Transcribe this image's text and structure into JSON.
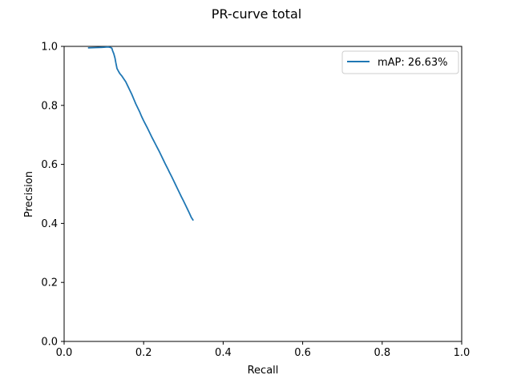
{
  "chart_data": {
    "type": "line",
    "title": "PR-curve total",
    "xlabel": "Recall",
    "ylabel": "Precision",
    "xlim": [
      0,
      1
    ],
    "ylim": [
      0,
      1
    ],
    "xticks": [
      0,
      0.2,
      0.4,
      0.6,
      0.8,
      1
    ],
    "xtick_labels": [
      "0.0",
      "0.2",
      "0.4",
      "0.6",
      "0.8",
      "1.0"
    ],
    "yticks": [
      0,
      0.2,
      0.4,
      0.6,
      0.8,
      1
    ],
    "ytick_labels": [
      "0.0",
      "0.2",
      "0.4",
      "0.6",
      "0.8",
      "1.0"
    ],
    "grid": false,
    "legend_position": "top-right",
    "series": [
      {
        "name": "mAP: 26.63%",
        "color": "#1f77b4",
        "x": [
          0.06,
          0.08,
          0.1,
          0.11,
          0.115,
          0.12,
          0.122,
          0.125,
          0.128,
          0.13,
          0.133,
          0.137,
          0.14,
          0.145,
          0.15,
          0.155,
          0.16,
          0.165,
          0.17,
          0.175,
          0.18,
          0.185,
          0.19,
          0.195,
          0.2,
          0.205,
          0.21,
          0.215,
          0.22,
          0.225,
          0.23,
          0.235,
          0.24,
          0.245,
          0.25,
          0.255,
          0.26,
          0.265,
          0.27,
          0.275,
          0.28,
          0.285,
          0.29,
          0.295,
          0.3,
          0.305,
          0.31,
          0.315,
          0.32,
          0.325
        ],
        "y": [
          0.995,
          0.996,
          0.997,
          0.998,
          0.997,
          0.994,
          0.985,
          0.975,
          0.96,
          0.945,
          0.925,
          0.915,
          0.908,
          0.9,
          0.89,
          0.88,
          0.866,
          0.852,
          0.838,
          0.822,
          0.806,
          0.792,
          0.778,
          0.762,
          0.748,
          0.735,
          0.722,
          0.708,
          0.694,
          0.681,
          0.668,
          0.655,
          0.642,
          0.628,
          0.614,
          0.6,
          0.587,
          0.573,
          0.56,
          0.546,
          0.532,
          0.518,
          0.504,
          0.49,
          0.477,
          0.463,
          0.449,
          0.435,
          0.42,
          0.41
        ]
      }
    ]
  }
}
